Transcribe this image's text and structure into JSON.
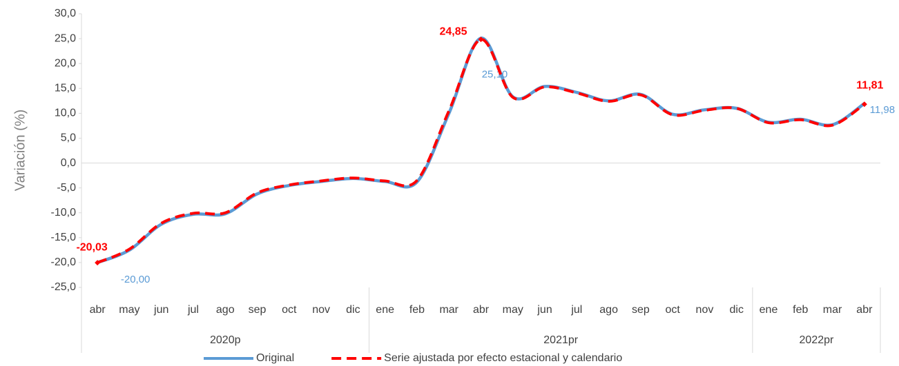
{
  "chart_data": {
    "type": "line",
    "y_label": "Variación (%)",
    "categories": [
      "abr",
      "may",
      "jun",
      "jul",
      "ago",
      "sep",
      "oct",
      "nov",
      "dic",
      "ene",
      "feb",
      "mar",
      "abr",
      "may",
      "jun",
      "jul",
      "ago",
      "sep",
      "oct",
      "nov",
      "dic",
      "ene",
      "feb",
      "mar",
      "abr"
    ],
    "groups": [
      {
        "label": "2020p",
        "count": 9
      },
      {
        "label": "2021pr",
        "count": 12
      },
      {
        "label": "2022pr",
        "count": 4
      }
    ],
    "series": [
      {
        "name": "Original",
        "color": "#5b9bd5",
        "style": "solid",
        "values": [
          -20.0,
          -17.5,
          -12.3,
          -10.3,
          -10.2,
          -6.2,
          -4.5,
          -3.7,
          -3.1,
          -3.7,
          -3.8,
          10.0,
          25.1,
          13.3,
          15.4,
          14.2,
          12.5,
          13.8,
          9.8,
          10.7,
          11.0,
          8.2,
          8.8,
          7.7,
          11.98
        ],
        "value_labels": [
          "-20,00",
          null,
          null,
          null,
          null,
          null,
          null,
          null,
          null,
          null,
          null,
          null,
          "25,10",
          null,
          null,
          null,
          null,
          null,
          null,
          null,
          null,
          null,
          null,
          null,
          "11,98"
        ]
      },
      {
        "name": "Serie ajustada por efecto estacional y calendario",
        "color": "#ff0000",
        "style": "dashed",
        "values": [
          -20.03,
          -17.3,
          -12.1,
          -10.1,
          -10.0,
          -6.0,
          -4.4,
          -3.6,
          -3.0,
          -3.6,
          -3.5,
          10.5,
          24.85,
          13.2,
          15.3,
          14.1,
          12.4,
          13.7,
          9.7,
          10.6,
          11.0,
          8.1,
          8.7,
          7.6,
          11.81
        ],
        "value_labels": [
          "-20,03",
          null,
          null,
          null,
          null,
          null,
          null,
          null,
          null,
          null,
          null,
          null,
          "24,85",
          null,
          null,
          null,
          null,
          null,
          null,
          null,
          null,
          null,
          null,
          null,
          "11,81"
        ]
      }
    ],
    "ylim": [
      -25,
      30
    ],
    "yticks": [
      {
        "value": -25,
        "label": "-25,0"
      },
      {
        "value": -20,
        "label": "-20,0"
      },
      {
        "value": -15,
        "label": "-15,0"
      },
      {
        "value": -10,
        "label": "-10,0"
      },
      {
        "value": -5,
        "label": "-5,0"
      },
      {
        "value": 0,
        "label": "0,0"
      },
      {
        "value": 5,
        "label": "5,0"
      },
      {
        "value": 10,
        "label": "10,0"
      },
      {
        "value": 15,
        "label": "15,0"
      },
      {
        "value": 20,
        "label": "20,0"
      },
      {
        "value": 25,
        "label": "25,0"
      },
      {
        "value": 30,
        "label": "30,0"
      }
    ],
    "grid": false,
    "legend": "bottom"
  }
}
